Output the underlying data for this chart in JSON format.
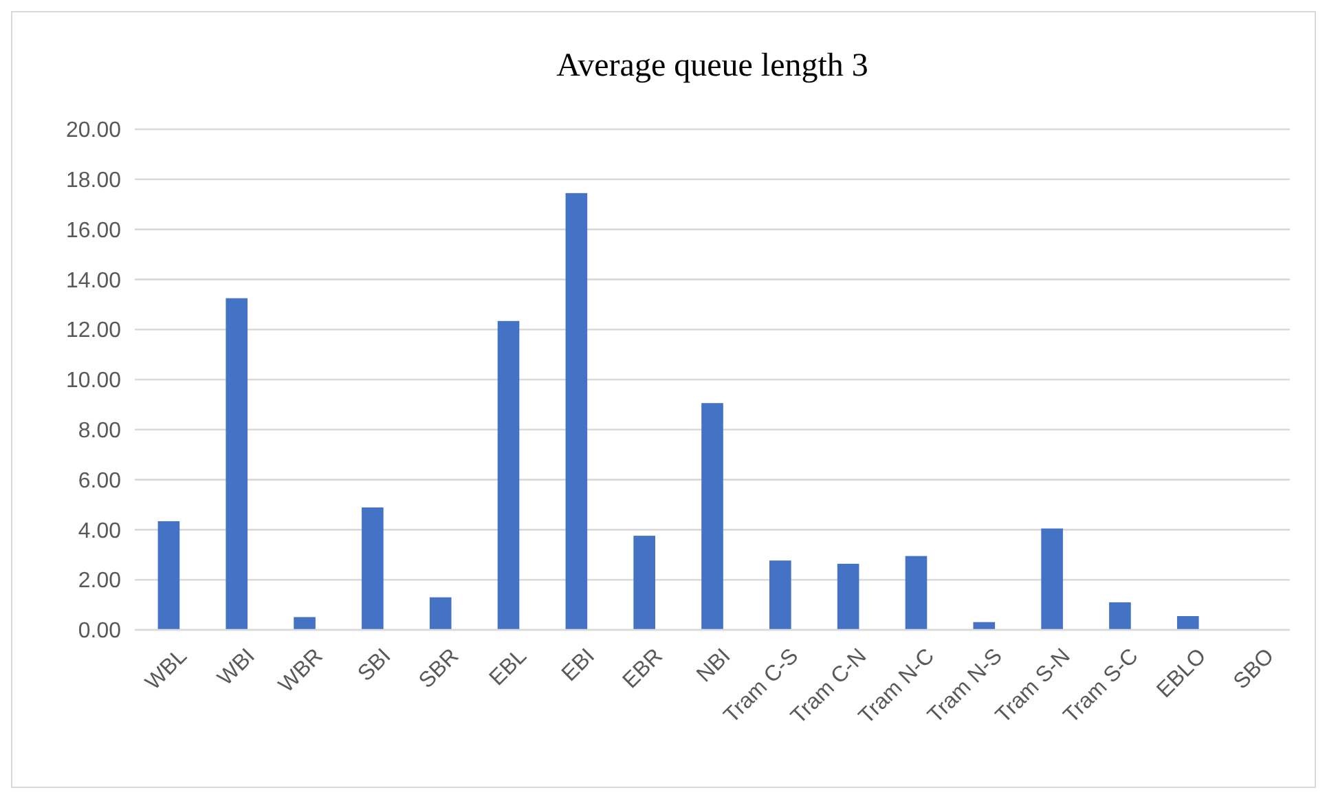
{
  "chart_data": {
    "type": "bar",
    "title": "Average queue length 3",
    "categories": [
      "WBL",
      "WBI",
      "WBR",
      "SBI",
      "SBR",
      "EBL",
      "EBI",
      "EBR",
      "NBI",
      "Tram C-S",
      "Tram C-N",
      "Tram N-C",
      "Tram N-S",
      "Tram S-N",
      "Tram S-C",
      "EBLO",
      "SBO"
    ],
    "values": [
      4.34,
      13.25,
      0.51,
      4.89,
      1.3,
      12.34,
      17.45,
      3.76,
      9.06,
      2.77,
      2.64,
      2.95,
      0.31,
      4.05,
      1.1,
      0.55,
      0
    ],
    "color": "#4472c4",
    "ylim": [
      0,
      20
    ],
    "yticks": [
      {
        "value": 0,
        "label": "0.00"
      },
      {
        "value": 2,
        "label": "2.00"
      },
      {
        "value": 4,
        "label": "4.00"
      },
      {
        "value": 6,
        "label": "6.00"
      },
      {
        "value": 8,
        "label": "8.00"
      },
      {
        "value": 10,
        "label": "10.00"
      },
      {
        "value": 12,
        "label": "12.00"
      },
      {
        "value": 14,
        "label": "14.00"
      },
      {
        "value": 16,
        "label": "16.00"
      },
      {
        "value": 18,
        "label": "18.00"
      },
      {
        "value": 20,
        "label": "20.00"
      }
    ],
    "grid": "y"
  }
}
